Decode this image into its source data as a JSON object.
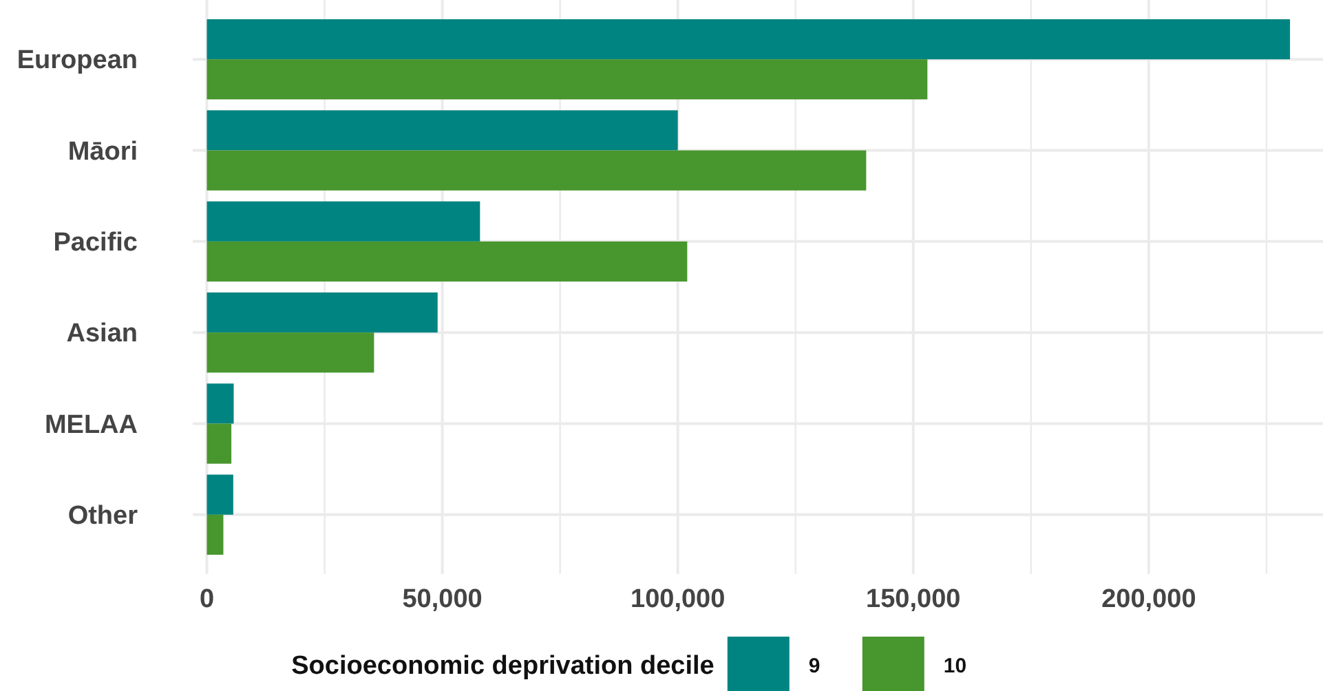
{
  "chart_data": {
    "type": "bar",
    "orientation": "horizontal",
    "categories": [
      "European",
      "Māori",
      "Pacific",
      "Asian",
      "MELAA",
      "Other"
    ],
    "series": [
      {
        "name": "9",
        "color": "#008481",
        "values": [
          230000,
          100000,
          58000,
          49000,
          5700,
          5600
        ]
      },
      {
        "name": "10",
        "color": "#48962e",
        "values": [
          153000,
          140000,
          102000,
          35500,
          5200,
          3500
        ]
      }
    ],
    "xlim": [
      -3000,
      237000
    ],
    "xticks": [
      0,
      {
        "value": 25000,
        "label": null
      },
      {
        "value": 50000,
        "label": "50,000"
      },
      {
        "value": 75000,
        "label": null
      },
      {
        "value": 100000,
        "label": "100,000"
      },
      {
        "value": 125000,
        "label": null
      },
      {
        "value": 150000,
        "label": "150,000"
      },
      {
        "value": 175000,
        "label": null
      },
      {
        "value": 200000,
        "label": "200,000"
      },
      {
        "value": 225000,
        "label": null
      }
    ],
    "grid": true,
    "legend": "bottom",
    "legend_title": "Socioeconomic deprivation decile"
  }
}
